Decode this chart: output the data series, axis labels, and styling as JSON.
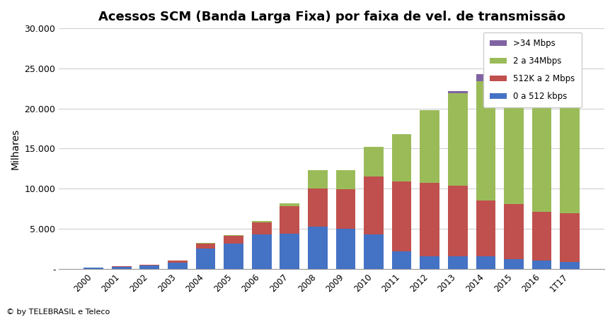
{
  "title": "Acessos SCM (Banda Larga Fixa) por faixa de vel. de transmissão",
  "ylabel": "Milhares",
  "footer": "© by TELEBRASIL e Teleco",
  "categories": [
    "2000",
    "2001",
    "2002",
    "2003",
    "2004",
    "2005",
    "2006",
    "2007",
    "2008",
    "2009",
    "2010",
    "2011",
    "2012",
    "2013",
    "2014",
    "2015",
    "2016",
    "1T17"
  ],
  "s0": [
    170,
    280,
    430,
    800,
    2500,
    3200,
    4300,
    4350,
    5250,
    5050,
    4300,
    2200,
    1600,
    1600,
    1600,
    1200,
    1050,
    850
  ],
  "s512": [
    30,
    90,
    130,
    220,
    650,
    950,
    1500,
    3450,
    4800,
    4850,
    7200,
    8700,
    9100,
    8800,
    6900,
    6900,
    6100,
    6100
  ],
  "s2": [
    0,
    0,
    0,
    0,
    100,
    100,
    150,
    350,
    2300,
    2400,
    3700,
    5900,
    9100,
    11500,
    14900,
    16800,
    16900,
    16900
  ],
  "s34": [
    0,
    0,
    0,
    0,
    0,
    0,
    0,
    0,
    0,
    0,
    0,
    0,
    0,
    300,
    900,
    700,
    2500,
    3200
  ],
  "color0": "#4472C4",
  "color512": "#C0504D",
  "color2": "#9BBB59",
  "color34": "#8064A2",
  "ylim": [
    0,
    30000
  ],
  "yticks": [
    0,
    5000,
    10000,
    15000,
    20000,
    25000,
    30000
  ],
  "background_color": "#FFFFFF",
  "legend_labels": [
    ">34 Mbps",
    "2 a 34Mbps",
    "512K a 2 Mbps",
    "0 a 512 kbps"
  ],
  "legend_colors": [
    "#8064A2",
    "#9BBB59",
    "#C0504D",
    "#4472C4"
  ],
  "title_fontsize": 13,
  "bar_width": 0.7
}
